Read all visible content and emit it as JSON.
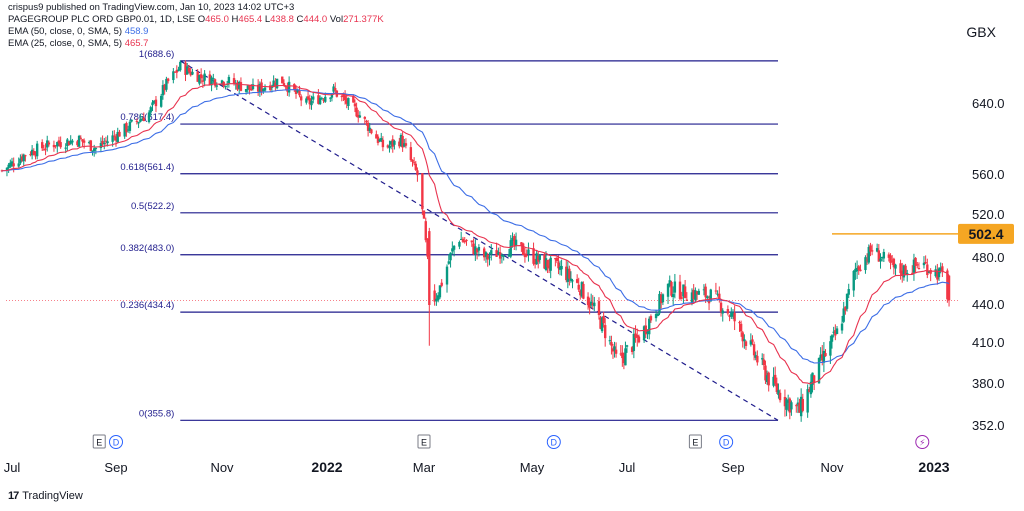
{
  "header": {
    "published": "crispus9 published on TradingView.com, Jan 10, 2023 14:02 UTC+3",
    "symbol_line": {
      "name": "PAGEGROUP PLC ORD GBP0.01, 1D, LSE",
      "o_label": "O",
      "o": "465.0",
      "h_label": "H",
      "h": "465.4",
      "l_label": "L",
      "l": "438.8",
      "c_label": "C",
      "c": "444.0",
      "vol_label": "Vol",
      "vol": "271.377K"
    },
    "ema50": {
      "label": "EMA (50, close, 0, SMA, 5)",
      "value": "458.9"
    },
    "ema25": {
      "label": "EMA (25, close, 0, SMA, 5)",
      "value": "465.7"
    }
  },
  "currency": "GBX",
  "footer": {
    "logo": "17",
    "brand": "TradingView"
  },
  "colors": {
    "up": "#089981",
    "down": "#f23645",
    "ema50": "#3d6ee6",
    "ema25": "#e8334f",
    "fib": "#1f1c8c",
    "resistance": "#f5a623",
    "price_label_bg": "#f5a623",
    "grid": "#eeeeee"
  },
  "chart_data": {
    "type": "candlestick",
    "y_ticks": [
      "640.0",
      "560.0",
      "520.0",
      "480.0",
      "440.0",
      "410.0",
      "380.0",
      "352.0"
    ],
    "y_tick_values": [
      640,
      560,
      520,
      480,
      440,
      410,
      380,
      352
    ],
    "x_ticks": [
      "Jul",
      "Sep",
      "Nov",
      "2022",
      "Mar",
      "May",
      "Jul",
      "Sep",
      "Nov",
      "2023"
    ],
    "x_tick_dates": [
      "2021-07-01",
      "2021-09-01",
      "2021-11-01",
      "2022-01-01",
      "2022-03-01",
      "2022-05-01",
      "2022-07-01",
      "2022-09-01",
      "2022-11-01",
      "2023-01-01"
    ],
    "fib_levels": [
      {
        "ratio": "1",
        "value": "688.6",
        "price": 688.6
      },
      {
        "ratio": "0.786",
        "value": "617.4",
        "price": 617.4
      },
      {
        "ratio": "0.618",
        "value": "561.4",
        "price": 561.4
      },
      {
        "ratio": "0.5",
        "value": "522.2",
        "price": 522.2
      },
      {
        "ratio": "0.382",
        "value": "483.0",
        "price": 483.0
      },
      {
        "ratio": "0.236",
        "value": "434.4",
        "price": 434.4
      },
      {
        "ratio": "0",
        "value": "355.8",
        "price": 355.8
      }
    ],
    "fib_start_date": "2021-10-08",
    "fib_end_date": "2022-10-12",
    "resistance": {
      "value": "502.4",
      "price": 502.4,
      "start_date": "2022-11-01"
    },
    "last_price": 444.0,
    "events": [
      {
        "date": "2021-08-22",
        "label": "E",
        "kind": "earnings"
      },
      {
        "date": "2021-09-01",
        "label": "D",
        "kind": "dividend"
      },
      {
        "date": "2022-03-01",
        "label": "E",
        "kind": "earnings"
      },
      {
        "date": "2022-05-15",
        "label": "D",
        "kind": "dividend"
      },
      {
        "date": "2022-08-10",
        "label": "E",
        "kind": "earnings"
      },
      {
        "date": "2022-08-28",
        "label": "D",
        "kind": "dividend"
      },
      {
        "date": "2022-12-25",
        "label": "⚡",
        "kind": "split"
      }
    ],
    "close_path": [
      [
        "2021-06-25",
        565
      ],
      [
        "2021-07-10",
        585
      ],
      [
        "2021-07-25",
        595
      ],
      [
        "2021-08-10",
        600
      ],
      [
        "2021-08-20",
        590
      ],
      [
        "2021-09-05",
        610
      ],
      [
        "2021-09-20",
        630
      ],
      [
        "2021-10-01",
        665
      ],
      [
        "2021-10-08",
        682
      ],
      [
        "2021-10-20",
        670
      ],
      [
        "2021-11-05",
        665
      ],
      [
        "2021-11-20",
        655
      ],
      [
        "2021-12-05",
        668
      ],
      [
        "2021-12-20",
        640
      ],
      [
        "2022-01-05",
        655
      ],
      [
        "2022-01-20",
        630
      ],
      [
        "2022-02-05",
        590
      ],
      [
        "2022-02-15",
        600
      ],
      [
        "2022-02-25",
        560
      ],
      [
        "2022-03-01",
        510
      ],
      [
        "2022-03-05",
        440
      ],
      [
        "2022-03-10",
        455
      ],
      [
        "2022-03-20",
        500
      ],
      [
        "2022-04-05",
        480
      ],
      [
        "2022-04-20",
        492
      ],
      [
        "2022-05-05",
        478
      ],
      [
        "2022-05-20",
        470
      ],
      [
        "2022-06-01",
        455
      ],
      [
        "2022-06-15",
        425
      ],
      [
        "2022-06-25",
        395
      ],
      [
        "2022-07-10",
        418
      ],
      [
        "2022-07-25",
        455
      ],
      [
        "2022-08-05",
        450
      ],
      [
        "2022-08-20",
        448
      ],
      [
        "2022-09-01",
        430
      ],
      [
        "2022-09-15",
        400
      ],
      [
        "2022-09-25",
        380
      ],
      [
        "2022-10-05",
        368
      ],
      [
        "2022-10-12",
        362
      ],
      [
        "2022-10-25",
        395
      ],
      [
        "2022-11-05",
        420
      ],
      [
        "2022-11-15",
        470
      ],
      [
        "2022-11-25",
        488
      ],
      [
        "2022-12-10",
        468
      ],
      [
        "2022-12-25",
        475
      ],
      [
        "2023-01-06",
        465
      ],
      [
        "2023-01-10",
        444
      ]
    ]
  }
}
